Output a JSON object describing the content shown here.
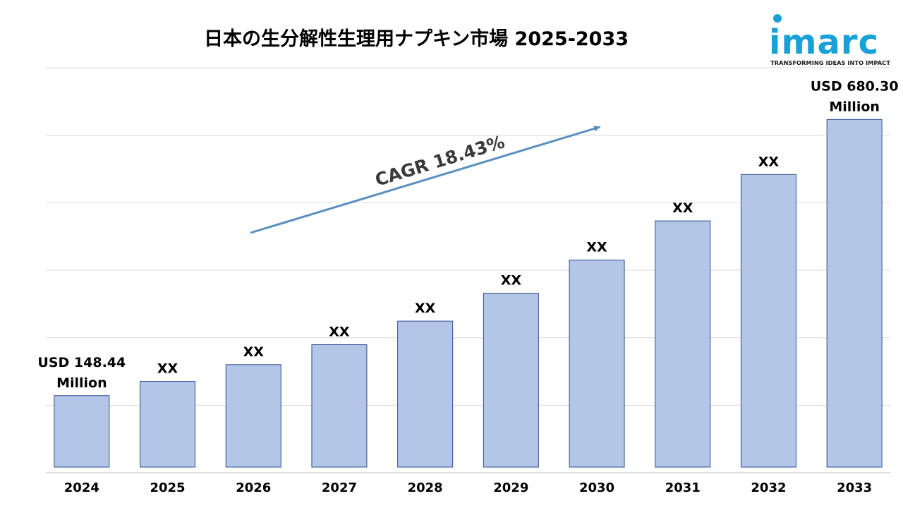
{
  "chart_data": {
    "type": "bar",
    "title": "日本の生分解性生理用ナプキン市場 2025-2033",
    "categories": [
      "2024",
      "2025",
      "2026",
      "2027",
      "2028",
      "2029",
      "2030",
      "2031",
      "2032",
      "2033"
    ],
    "values": [
      148.44,
      175.8,
      208.2,
      246.6,
      292.0,
      345.8,
      409.5,
      485.0,
      574.4,
      680.3
    ],
    "data_labels": [
      "USD 148.44\nMillion",
      "XX",
      "XX",
      "XX",
      "XX",
      "XX",
      "XX",
      "XX",
      "XX",
      "USD 680.30\nMillion"
    ],
    "ylim": [
      0,
      780
    ],
    "grid": true,
    "bar_color": "#b4c6e7",
    "bar_edge_color": "#2f4f8f",
    "annotation": "CAGR 18.43%",
    "arrow_color": "#5b8fc0"
  },
  "logo": {
    "name": "imarc",
    "tagline": "TRANSFORMING IDEAS INTO IMPACT",
    "color": "#1aa0d8"
  }
}
